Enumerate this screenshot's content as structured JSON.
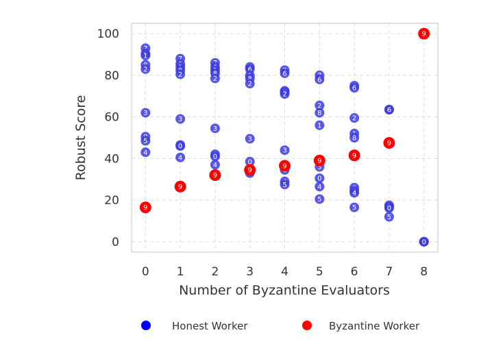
{
  "chart_data": {
    "type": "scatter",
    "xlabel": "Number of Byzantine Evaluators",
    "ylabel": "Robust Score",
    "xlim": [
      -0.4,
      8.4
    ],
    "ylim": [
      -5,
      105
    ],
    "xticks": [
      "0",
      "1",
      "2",
      "3",
      "4",
      "5",
      "6",
      "7",
      "8"
    ],
    "yticks": [
      "0",
      "20",
      "40",
      "60",
      "80",
      "100"
    ],
    "grid": true,
    "legend_position": "bottom",
    "series": [
      {
        "name": "Honest Worker",
        "color": "#3b3be0",
        "points": [
          {
            "x": 0,
            "y": 93,
            "label": "7"
          },
          {
            "x": 0,
            "y": 90.5,
            "label": "6"
          },
          {
            "x": 0,
            "y": 89.5,
            "label": "1"
          },
          {
            "x": 0,
            "y": 85,
            "label": "8"
          },
          {
            "x": 0,
            "y": 83,
            "label": "2"
          },
          {
            "x": 0,
            "y": 62,
            "label": "3"
          },
          {
            "x": 0,
            "y": 50.5,
            "label": "0"
          },
          {
            "x": 0,
            "y": 48.5,
            "label": "5"
          },
          {
            "x": 0,
            "y": 43,
            "label": "4"
          },
          {
            "x": 1,
            "y": 88,
            "label": "7"
          },
          {
            "x": 1,
            "y": 85.5,
            "label": "6"
          },
          {
            "x": 1,
            "y": 84,
            "label": "1"
          },
          {
            "x": 1,
            "y": 82.5,
            "label": "8"
          },
          {
            "x": 1,
            "y": 80.5,
            "label": "2"
          },
          {
            "x": 1,
            "y": 59,
            "label": "3"
          },
          {
            "x": 1,
            "y": 46.5,
            "label": "5"
          },
          {
            "x": 1,
            "y": 46,
            "label": "0"
          },
          {
            "x": 1,
            "y": 40.5,
            "label": "4"
          },
          {
            "x": 2,
            "y": 86,
            "label": "7"
          },
          {
            "x": 2,
            "y": 84,
            "label": "6"
          },
          {
            "x": 2,
            "y": 82.5,
            "label": "1"
          },
          {
            "x": 2,
            "y": 81,
            "label": "8"
          },
          {
            "x": 2,
            "y": 78.5,
            "label": "2"
          },
          {
            "x": 2,
            "y": 54.5,
            "label": "3"
          },
          {
            "x": 2,
            "y": 42,
            "label": "5"
          },
          {
            "x": 2,
            "y": 41,
            "label": "0"
          },
          {
            "x": 2,
            "y": 37,
            "label": "4"
          },
          {
            "x": 3,
            "y": 84,
            "label": "7"
          },
          {
            "x": 3,
            "y": 83,
            "label": "6"
          },
          {
            "x": 3,
            "y": 80,
            "label": "1"
          },
          {
            "x": 3,
            "y": 78.5,
            "label": "8"
          },
          {
            "x": 3,
            "y": 76,
            "label": "2"
          },
          {
            "x": 3,
            "y": 49.5,
            "label": "3"
          },
          {
            "x": 3,
            "y": 38.5,
            "label": "0"
          },
          {
            "x": 3,
            "y": 34,
            "label": "5"
          },
          {
            "x": 3,
            "y": 33,
            "label": "4"
          },
          {
            "x": 4,
            "y": 82.5,
            "label": "7"
          },
          {
            "x": 4,
            "y": 81,
            "label": "6"
          },
          {
            "x": 4,
            "y": 72.5,
            "label": "1"
          },
          {
            "x": 4,
            "y": 72,
            "label": "8"
          },
          {
            "x": 4,
            "y": 71,
            "label": "2"
          },
          {
            "x": 4,
            "y": 44,
            "label": "3"
          },
          {
            "x": 4,
            "y": 34.5,
            "label": "0"
          },
          {
            "x": 4,
            "y": 29,
            "label": "4"
          },
          {
            "x": 4,
            "y": 27.5,
            "label": "5"
          },
          {
            "x": 5,
            "y": 80,
            "label": "7"
          },
          {
            "x": 5,
            "y": 78,
            "label": "6"
          },
          {
            "x": 5,
            "y": 65.5,
            "label": "2"
          },
          {
            "x": 5,
            "y": 62,
            "label": "8"
          },
          {
            "x": 5,
            "y": 56,
            "label": "1"
          },
          {
            "x": 5,
            "y": 36,
            "label": "3"
          },
          {
            "x": 5,
            "y": 30.5,
            "label": "0"
          },
          {
            "x": 5,
            "y": 26.5,
            "label": "4"
          },
          {
            "x": 5,
            "y": 20.5,
            "label": "5"
          },
          {
            "x": 6,
            "y": 75,
            "label": "7"
          },
          {
            "x": 6,
            "y": 74,
            "label": "6"
          },
          {
            "x": 6,
            "y": 59.5,
            "label": "2"
          },
          {
            "x": 6,
            "y": 52,
            "label": "1"
          },
          {
            "x": 6,
            "y": 50,
            "label": "8"
          },
          {
            "x": 6,
            "y": 26,
            "label": "0"
          },
          {
            "x": 6,
            "y": 24.5,
            "label": "3"
          },
          {
            "x": 6,
            "y": 23.5,
            "label": "4"
          },
          {
            "x": 6,
            "y": 16.5,
            "label": "5"
          },
          {
            "x": 7,
            "y": 63.5,
            "label": "7"
          },
          {
            "x": 7,
            "y": 63.5,
            "label": "6"
          },
          {
            "x": 7,
            "y": 17.5,
            "label": "1"
          },
          {
            "x": 7,
            "y": 16.8,
            "label": "2"
          },
          {
            "x": 7,
            "y": 16.2,
            "label": "0"
          },
          {
            "x": 7,
            "y": 12,
            "label": "5"
          },
          {
            "x": 8,
            "y": 0,
            "label": "0"
          },
          {
            "x": 8,
            "y": 0,
            "label": "0"
          },
          {
            "x": 8,
            "y": 0,
            "label": "0"
          }
        ]
      },
      {
        "name": "Byzantine Worker",
        "color": "#ff0000",
        "points": [
          {
            "x": 0,
            "y": 16.5,
            "label": "9"
          },
          {
            "x": 1,
            "y": 26.5,
            "label": "9"
          },
          {
            "x": 2,
            "y": 32,
            "label": "9"
          },
          {
            "x": 3,
            "y": 34.5,
            "label": "9"
          },
          {
            "x": 4,
            "y": 36.5,
            "label": "9"
          },
          {
            "x": 5,
            "y": 39,
            "label": "9"
          },
          {
            "x": 6,
            "y": 41.5,
            "label": "9"
          },
          {
            "x": 7,
            "y": 47.5,
            "label": "9"
          },
          {
            "x": 8,
            "y": 100,
            "label": "9"
          }
        ]
      }
    ]
  }
}
